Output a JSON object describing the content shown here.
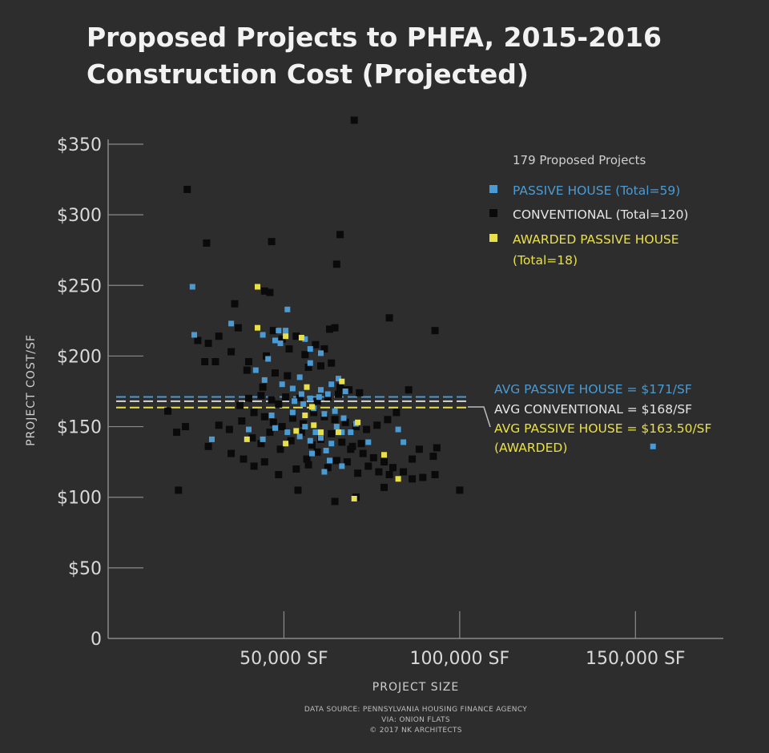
{
  "chart_data": {
    "type": "scatter",
    "title": [
      "Proposed Projects to PHFA, 2015-2016",
      "Construction Cost (Projected)"
    ],
    "xlabel": "PROJECT SIZE",
    "ylabel": "PROJECT COST/SF",
    "xlim": [
      0,
      175000
    ],
    "ylim": [
      0,
      360
    ],
    "x_ticks": [
      {
        "value": 50000,
        "label": "50,000 SF"
      },
      {
        "value": 100000,
        "label": "100,000 SF"
      },
      {
        "value": 150000,
        "label": "150,000 SF"
      }
    ],
    "y_ticks": [
      {
        "value": 0,
        "label": "0"
      },
      {
        "value": 50,
        "label": "$50"
      },
      {
        "value": 100,
        "label": "$100"
      },
      {
        "value": 150,
        "label": "$150"
      },
      {
        "value": 200,
        "label": "$200"
      },
      {
        "value": 250,
        "label": "$250"
      },
      {
        "value": 300,
        "label": "$300"
      },
      {
        "value": 350,
        "label": "$350"
      }
    ],
    "legend_title": "179 Proposed Projects",
    "legend": [
      {
        "label": "PASSIVE HOUSE (Total=59)",
        "color": "#4a9bd4"
      },
      {
        "label": "CONVENTIONAL (Total=120)",
        "color": "#0a0a0a"
      },
      {
        "label": "AWARDED PASSIVE HOUSE",
        "label2": "(Total=18)",
        "color": "#e8e04a"
      }
    ],
    "averages": [
      {
        "label": "AVG PASSIVE HOUSE = $171/SF",
        "value": 171,
        "color": "#4a9bd4"
      },
      {
        "label": "AVG CONVENTIONAL = $168/SF",
        "value": 168,
        "color": "#d6d6d6"
      },
      {
        "label": "AVG PASSIVE HOUSE = $163.50/SF",
        "label2": "(AWARDED)",
        "value": 163.5,
        "color": "#e8e04a"
      }
    ],
    "series": [
      {
        "name": "CONVENTIONAL",
        "color": "#0a0a0a",
        "points": [
          [
            70000,
            367
          ],
          [
            22500,
            318
          ],
          [
            66000,
            286
          ],
          [
            28000,
            280
          ],
          [
            46500,
            281
          ],
          [
            65000,
            265
          ],
          [
            46000,
            245
          ],
          [
            44500,
            246
          ],
          [
            36000,
            237
          ],
          [
            37000,
            220
          ],
          [
            47000,
            218
          ],
          [
            49500,
            212
          ],
          [
            53500,
            214
          ],
          [
            63000,
            219
          ],
          [
            64500,
            220
          ],
          [
            80000,
            227
          ],
          [
            93000,
            218
          ],
          [
            25500,
            211
          ],
          [
            28500,
            209
          ],
          [
            31500,
            214
          ],
          [
            40000,
            196
          ],
          [
            45000,
            200
          ],
          [
            51500,
            205
          ],
          [
            56000,
            201
          ],
          [
            59000,
            208
          ],
          [
            61500,
            205
          ],
          [
            35000,
            203
          ],
          [
            27500,
            196
          ],
          [
            30500,
            196
          ],
          [
            39500,
            190
          ],
          [
            44000,
            178
          ],
          [
            47500,
            188
          ],
          [
            51000,
            186
          ],
          [
            57000,
            192
          ],
          [
            60500,
            193
          ],
          [
            63500,
            195
          ],
          [
            66000,
            178
          ],
          [
            68500,
            176
          ],
          [
            71500,
            174
          ],
          [
            43500,
            172
          ],
          [
            46500,
            169
          ],
          [
            48500,
            166
          ],
          [
            50500,
            171
          ],
          [
            54500,
            170
          ],
          [
            59500,
            168
          ],
          [
            62500,
            171
          ],
          [
            65500,
            173
          ],
          [
            67500,
            176
          ],
          [
            37500,
            165
          ],
          [
            41500,
            160
          ],
          [
            44500,
            157
          ],
          [
            47000,
            153
          ],
          [
            49500,
            150
          ],
          [
            52500,
            156
          ],
          [
            55500,
            152
          ],
          [
            58500,
            160
          ],
          [
            61500,
            157
          ],
          [
            64500,
            155
          ],
          [
            67500,
            153
          ],
          [
            70500,
            150
          ],
          [
            73500,
            148
          ],
          [
            76500,
            151
          ],
          [
            79500,
            155
          ],
          [
            82000,
            160
          ],
          [
            17000,
            161
          ],
          [
            19500,
            146
          ],
          [
            22000,
            150
          ],
          [
            28500,
            136
          ],
          [
            31500,
            151
          ],
          [
            34500,
            148
          ],
          [
            38000,
            154
          ],
          [
            41000,
            142
          ],
          [
            43500,
            138
          ],
          [
            46000,
            146
          ],
          [
            49000,
            134
          ],
          [
            52000,
            140
          ],
          [
            55000,
            146
          ],
          [
            58000,
            137
          ],
          [
            60500,
            141
          ],
          [
            63500,
            145
          ],
          [
            66500,
            139
          ],
          [
            69500,
            136
          ],
          [
            72500,
            131
          ],
          [
            75500,
            128
          ],
          [
            78500,
            125
          ],
          [
            81000,
            121
          ],
          [
            84000,
            118
          ],
          [
            86500,
            127
          ],
          [
            89500,
            114
          ],
          [
            92500,
            129
          ],
          [
            93500,
            135
          ],
          [
            35000,
            131
          ],
          [
            38500,
            127
          ],
          [
            41500,
            122
          ],
          [
            44500,
            125
          ],
          [
            48500,
            116
          ],
          [
            53500,
            120
          ],
          [
            56500,
            127
          ],
          [
            59500,
            132
          ],
          [
            62500,
            121
          ],
          [
            65000,
            126
          ],
          [
            68000,
            125
          ],
          [
            71000,
            117
          ],
          [
            74000,
            122
          ],
          [
            77000,
            118
          ],
          [
            80000,
            116
          ],
          [
            86500,
            113
          ],
          [
            93000,
            116
          ],
          [
            20000,
            105
          ],
          [
            54000,
            105
          ],
          [
            64500,
            97
          ],
          [
            70500,
            100
          ],
          [
            78500,
            107
          ],
          [
            100000,
            105
          ],
          [
            85500,
            176
          ],
          [
            88500,
            134
          ],
          [
            69000,
            134
          ],
          [
            57000,
            123
          ],
          [
            40000,
            170
          ],
          [
            72000,
            138
          ]
        ]
      },
      {
        "name": "PASSIVE HOUSE",
        "color": "#4a9bd4",
        "points": [
          [
            24000,
            249
          ],
          [
            51000,
            233
          ],
          [
            24500,
            215
          ],
          [
            35000,
            223
          ],
          [
            44000,
            215
          ],
          [
            47500,
            211
          ],
          [
            48500,
            218
          ],
          [
            50500,
            218
          ],
          [
            56000,
            212
          ],
          [
            57500,
            205
          ],
          [
            60500,
            202
          ],
          [
            42000,
            190
          ],
          [
            44500,
            183
          ],
          [
            49500,
            180
          ],
          [
            52500,
            177
          ],
          [
            55000,
            173
          ],
          [
            57500,
            170
          ],
          [
            60000,
            171
          ],
          [
            62500,
            173
          ],
          [
            65500,
            184
          ],
          [
            67500,
            175
          ],
          [
            53000,
            168
          ],
          [
            55500,
            166
          ],
          [
            58500,
            163
          ],
          [
            61500,
            159
          ],
          [
            64500,
            161
          ],
          [
            67000,
            156
          ],
          [
            70500,
            152
          ],
          [
            47500,
            149
          ],
          [
            51000,
            146
          ],
          [
            54500,
            143
          ],
          [
            57500,
            140
          ],
          [
            60500,
            142
          ],
          [
            63500,
            138
          ],
          [
            66500,
            146
          ],
          [
            74000,
            139
          ],
          [
            82500,
            148
          ],
          [
            84000,
            139
          ],
          [
            29500,
            141
          ],
          [
            44000,
            141
          ],
          [
            58000,
            131
          ],
          [
            63000,
            126
          ],
          [
            66500,
            122
          ],
          [
            61500,
            118
          ],
          [
            155000,
            136
          ],
          [
            46500,
            158
          ],
          [
            56000,
            150
          ],
          [
            59000,
            146
          ],
          [
            62000,
            133
          ],
          [
            65000,
            150
          ],
          [
            69000,
            146
          ],
          [
            52500,
            160
          ],
          [
            60500,
            176
          ],
          [
            63500,
            180
          ],
          [
            54500,
            185
          ],
          [
            45500,
            198
          ],
          [
            57500,
            195
          ],
          [
            49000,
            209
          ],
          [
            40000,
            148
          ]
        ]
      },
      {
        "name": "AWARDED PASSIVE HOUSE",
        "color": "#e8e04a",
        "points": [
          [
            42500,
            249
          ],
          [
            42500,
            220
          ],
          [
            50500,
            214
          ],
          [
            56500,
            178
          ],
          [
            58000,
            164
          ],
          [
            56000,
            158
          ],
          [
            58500,
            151
          ],
          [
            60500,
            146
          ],
          [
            53500,
            147
          ],
          [
            50500,
            138
          ],
          [
            39500,
            141
          ],
          [
            66500,
            182
          ],
          [
            71000,
            153
          ],
          [
            65500,
            146
          ],
          [
            78500,
            130
          ],
          [
            82500,
            113
          ],
          [
            70000,
            99
          ],
          [
            55000,
            213
          ]
        ]
      }
    ],
    "source_lines": [
      "DATA SOURCE: PENNSYLVANIA HOUSING FINANCE AGENCY",
      "VIA: ONION FLATS",
      "© 2017 NK ARCHITECTS"
    ]
  }
}
